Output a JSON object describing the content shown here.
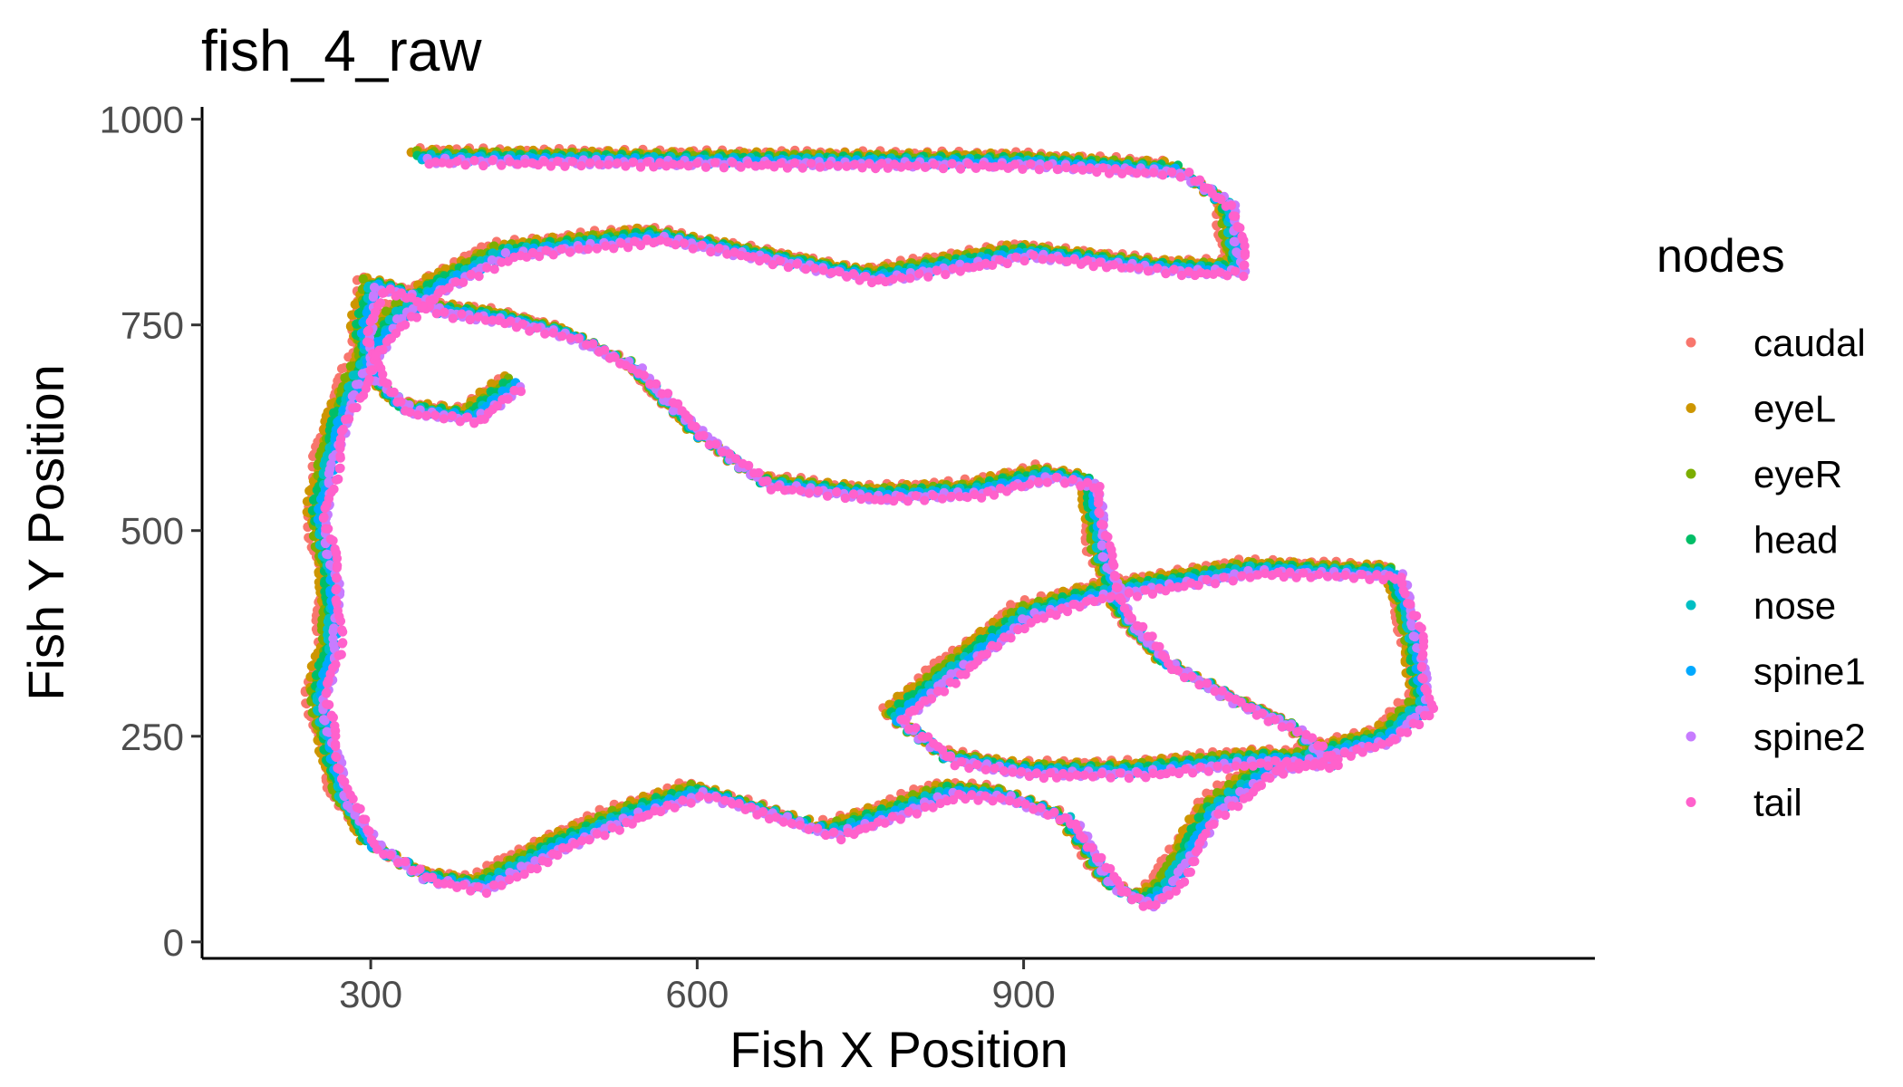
{
  "chart_data": {
    "type": "scatter",
    "title": "fish_4_raw",
    "xlabel": "Fish X Position",
    "ylabel": "Fish Y Position",
    "xlim": [
      145,
      1425
    ],
    "ylim": [
      -20,
      1015
    ],
    "xticks": [
      300,
      600,
      900
    ],
    "yticks": [
      0,
      250,
      500,
      750,
      1000
    ],
    "grid": false,
    "legend": {
      "title": "nodes",
      "position": "right"
    },
    "path": [
      [
        345,
        955
      ],
      [
        600,
        952
      ],
      [
        900,
        950
      ],
      [
        1040,
        940
      ],
      [
        1085,
        900
      ],
      [
        1095,
        820
      ],
      [
        1040,
        820
      ],
      [
        900,
        840
      ],
      [
        760,
        810
      ],
      [
        560,
        860
      ],
      [
        420,
        840
      ],
      [
        360,
        800
      ],
      [
        320,
        760
      ],
      [
        290,
        700
      ],
      [
        270,
        640
      ],
      [
        262,
        600
      ],
      [
        250,
        520
      ],
      [
        262,
        440
      ],
      [
        262,
        360
      ],
      [
        250,
        300
      ],
      [
        258,
        250
      ],
      [
        272,
        180
      ],
      [
        300,
        120
      ],
      [
        350,
        80
      ],
      [
        400,
        70
      ],
      [
        470,
        120
      ],
      [
        540,
        160
      ],
      [
        600,
        185
      ],
      [
        660,
        160
      ],
      [
        720,
        135
      ],
      [
        780,
        160
      ],
      [
        830,
        185
      ],
      [
        880,
        180
      ],
      [
        940,
        150
      ],
      [
        980,
        70
      ],
      [
        1010,
        50
      ],
      [
        1030,
        70
      ],
      [
        1070,
        160
      ],
      [
        1120,
        210
      ],
      [
        1170,
        230
      ],
      [
        1230,
        250
      ],
      [
        1265,
        290
      ],
      [
        1255,
        380
      ],
      [
        1240,
        450
      ],
      [
        1110,
        455
      ],
      [
        965,
        425
      ],
      [
        900,
        400
      ],
      [
        830,
        330
      ],
      [
        780,
        275
      ],
      [
        830,
        225
      ],
      [
        900,
        210
      ],
      [
        1000,
        210
      ],
      [
        1120,
        225
      ],
      [
        1180,
        220
      ],
      [
        1150,
        260
      ],
      [
        1100,
        290
      ],
      [
        1030,
        340
      ],
      [
        990,
        400
      ],
      [
        970,
        470
      ],
      [
        960,
        560
      ],
      [
        920,
        570
      ],
      [
        850,
        550
      ],
      [
        760,
        545
      ],
      [
        660,
        560
      ],
      [
        600,
        620
      ],
      [
        540,
        700
      ],
      [
        480,
        740
      ],
      [
        420,
        760
      ],
      [
        360,
        770
      ],
      [
        330,
        790
      ],
      [
        300,
        800
      ],
      [
        290,
        740
      ],
      [
        300,
        690
      ],
      [
        330,
        650
      ],
      [
        390,
        640
      ],
      [
        430,
        680
      ]
    ],
    "series": [
      {
        "name": "caudal",
        "color": "#F8766D"
      },
      {
        "name": "eyeL",
        "color": "#CD9600"
      },
      {
        "name": "eyeR",
        "color": "#7CAE00"
      },
      {
        "name": "head",
        "color": "#00BE67"
      },
      {
        "name": "nose",
        "color": "#00BFC4"
      },
      {
        "name": "spine1",
        "color": "#00A9FF"
      },
      {
        "name": "spine2",
        "color": "#C77CFF"
      },
      {
        "name": "tail",
        "color": "#FF61CC"
      }
    ]
  }
}
